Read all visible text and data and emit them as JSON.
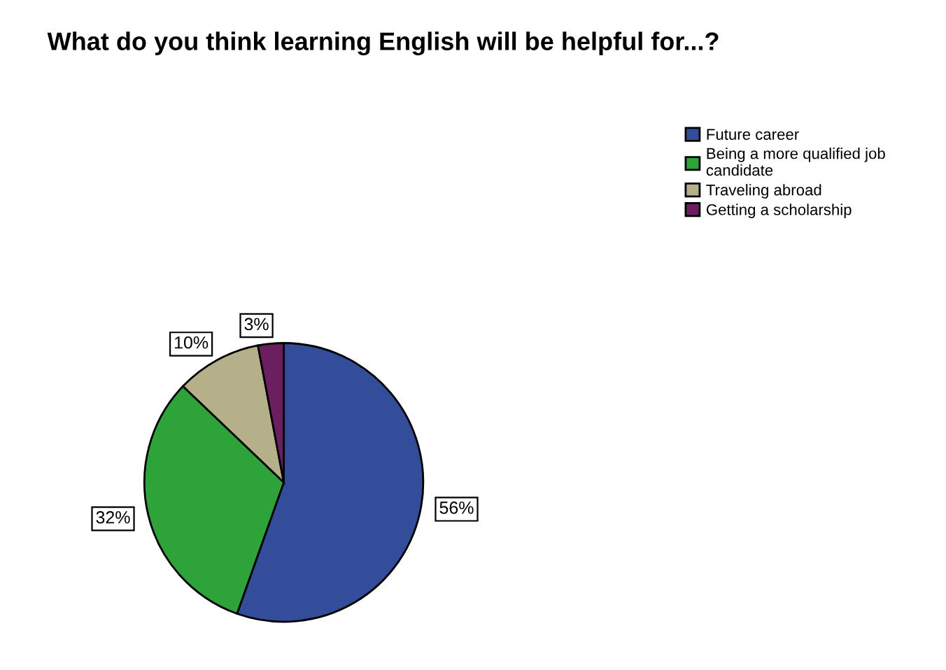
{
  "chart_data": {
    "type": "pie",
    "title": "What do you think learning English will be helpful for...?",
    "categories": [
      "Future career",
      "Being a more qualified job\ncandidate",
      "Traveling abroad",
      "Getting a scholarship"
    ],
    "values": [
      56,
      32,
      10,
      3
    ],
    "colors": [
      "#344d9b",
      "#2ea33a",
      "#b5b08a",
      "#6b1f5f"
    ],
    "value_labels": [
      "56%",
      "32%",
      "10%",
      "3%"
    ],
    "legend": "top right"
  }
}
